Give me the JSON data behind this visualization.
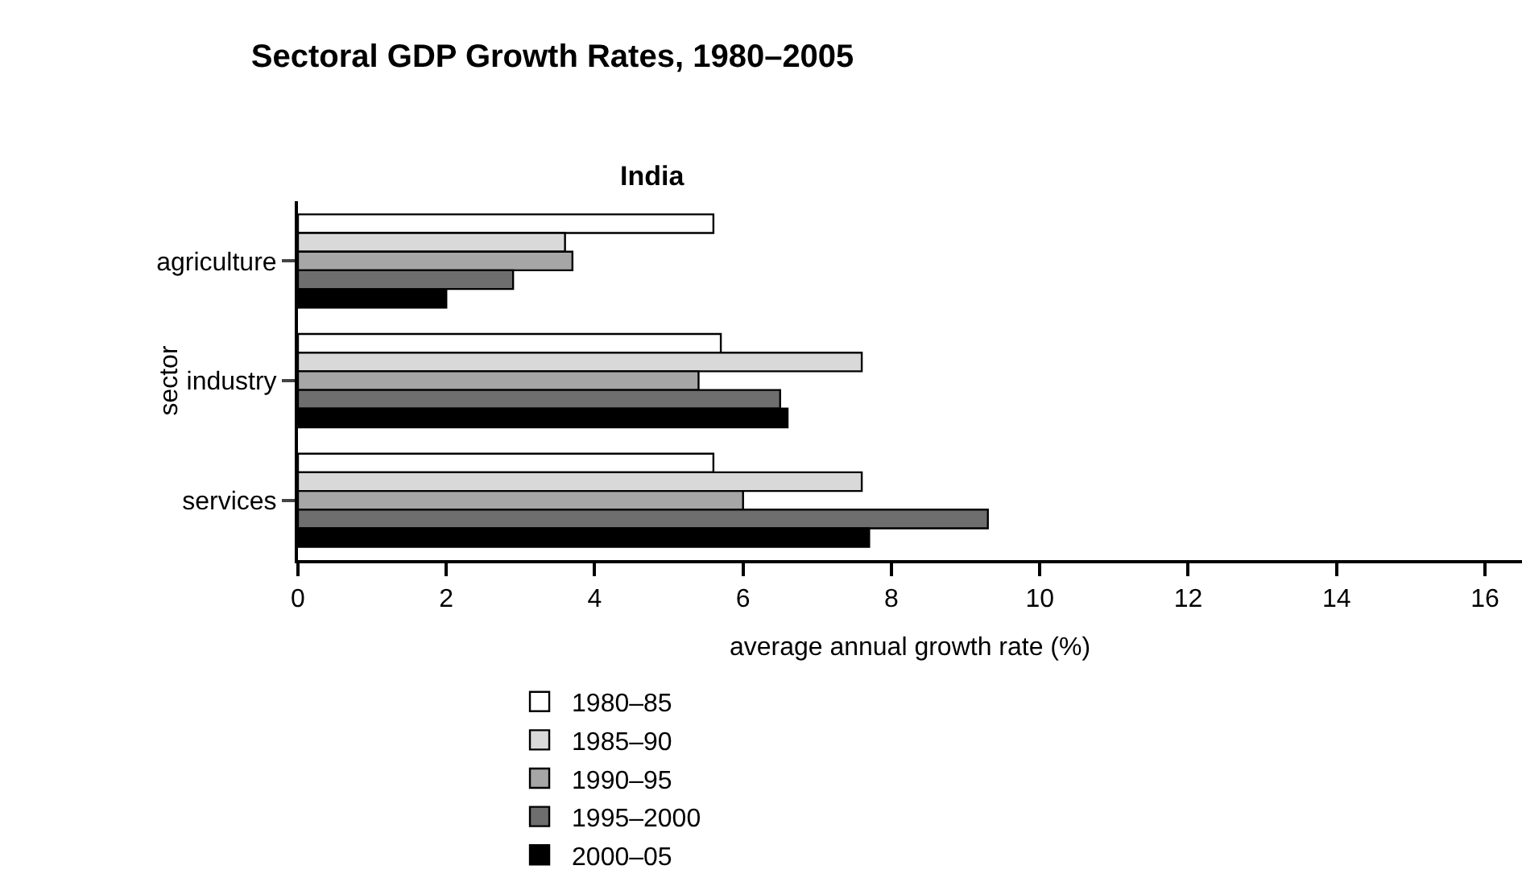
{
  "chart_data": {
    "type": "bar",
    "orientation": "horizontal",
    "title": "Sectoral GDP Growth Rates, 1980–2005",
    "subtitle": "India",
    "xlabel": "average annual growth rate (%)",
    "ylabel": "sector",
    "categories": [
      "agriculture",
      "industry",
      "services"
    ],
    "series": [
      {
        "name": "1980–85",
        "color": "#ffffff",
        "values": [
          5.6,
          5.7,
          5.6
        ]
      },
      {
        "name": "1985–90",
        "color": "#d9d9d9",
        "values": [
          3.6,
          7.6,
          7.6
        ]
      },
      {
        "name": "1990–95",
        "color": "#a6a6a6",
        "values": [
          3.7,
          5.4,
          6.0
        ]
      },
      {
        "name": "1995–2000",
        "color": "#6e6e6e",
        "values": [
          2.9,
          6.5,
          9.3
        ]
      },
      {
        "name": "2000–05",
        "color": "#000000",
        "values": [
          2.0,
          6.6,
          7.7
        ]
      }
    ],
    "xlim": [
      0,
      16.5
    ],
    "xticks": [
      0,
      2,
      4,
      6,
      8,
      10,
      12,
      14,
      16
    ],
    "grid": false,
    "legend": "bottom"
  }
}
